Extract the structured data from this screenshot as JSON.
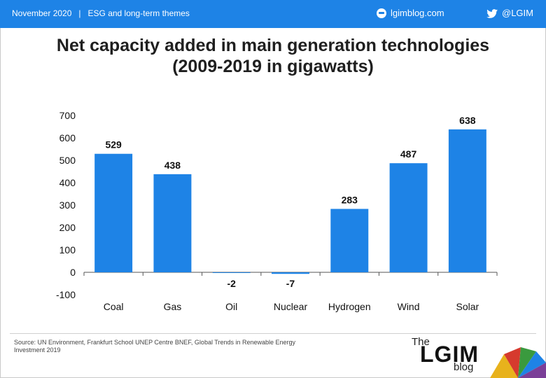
{
  "header": {
    "date": "November 2020",
    "separator": "|",
    "section": "ESG and long-term themes",
    "site": "lgimblog.com",
    "twitter": "@LGIM",
    "bar_color": "#1e83e6"
  },
  "icons": {
    "site": "globe-icon",
    "social": "twitter-icon"
  },
  "title_line1": "Net capacity added in main generation technologies",
  "title_line2": "(2009-2019 in gigawatts)",
  "chart_data": {
    "type": "bar",
    "title": "Net capacity added in main generation technologies (2009-2019 in gigawatts)",
    "categories": [
      "Coal",
      "Gas",
      "Oil",
      "Nuclear",
      "Hydrogen",
      "Wind",
      "Solar"
    ],
    "values": [
      529,
      438,
      -2,
      -7,
      283,
      487,
      638
    ],
    "value_labels": [
      "529",
      "438",
      "-2",
      "-7",
      "283",
      "487",
      "638"
    ],
    "yticks": [
      "-100",
      "0",
      "100",
      "200",
      "300",
      "400",
      "500",
      "600",
      "700"
    ],
    "ylim": [
      -100,
      700
    ],
    "xlabel": "",
    "ylabel": "",
    "bar_color": "#1e83e6",
    "grid": false,
    "legend": "none"
  },
  "footer": {
    "source": "Source: UN Environment, Frankfurt School UNEP Centre BNEF, Global Trends in Renewable Energy Investment 2019",
    "logo_the": "The",
    "logo_main": "LGIM",
    "logo_blog": "blog"
  }
}
